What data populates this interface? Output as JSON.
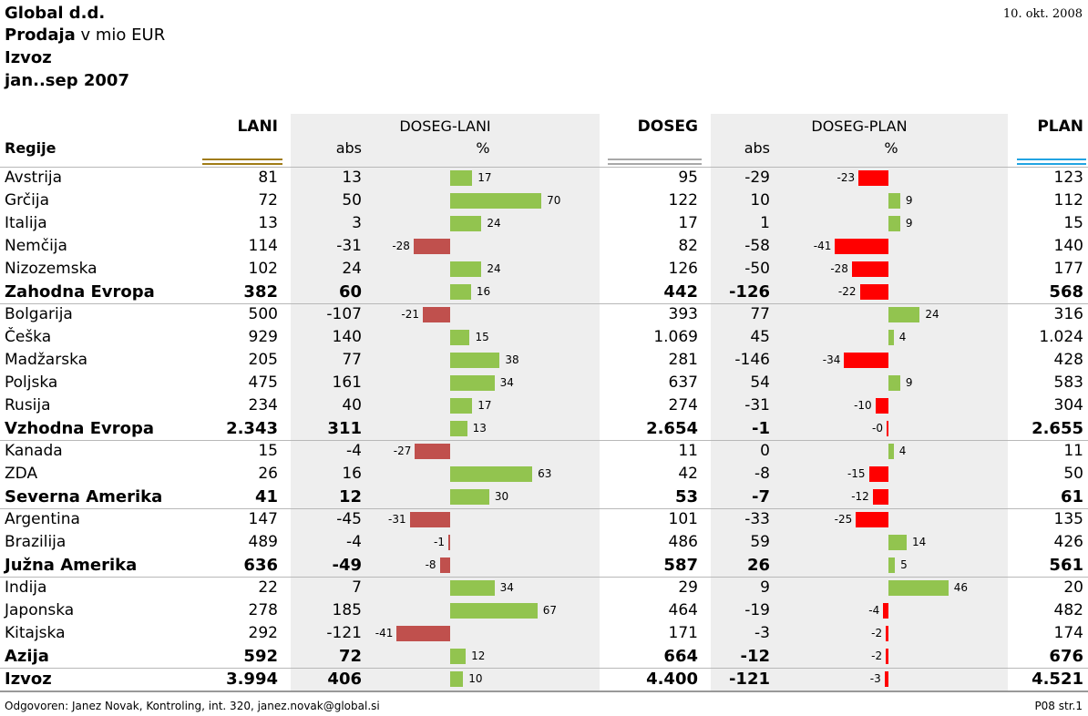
{
  "header": {
    "company": "Global d.d.",
    "measure_bold": "Prodaja",
    "measure_unit": " v mio EUR",
    "segment": "Izvoz",
    "period": "jan..sep 2007",
    "date": "10. okt. 2008"
  },
  "columns": {
    "region": "Regije",
    "lani": "LANI",
    "doseg_lani": "DOSEG-LANI",
    "doseg": "DOSEG",
    "doseg_plan": "DOSEG-PLAN",
    "plan": "PLAN",
    "abs": "abs",
    "pct": "%"
  },
  "colors": {
    "lani_line": "#a07c16",
    "doseg_line": "#a8a8a8",
    "plan_line": "#22a4e2",
    "positive_bar": "#92c44f",
    "lani_negative_bar": "#c0504d",
    "plan_negative_bar": "#ff0000",
    "shade": "#eeeeee"
  },
  "chart_data": {
    "type": "table",
    "rows": [
      {
        "region": "Avstrija",
        "lani": "81",
        "dl_abs": "13",
        "dl_pct": 17,
        "doseg": "95",
        "dp_abs": "-29",
        "dp_pct": -23,
        "plan": "123",
        "total": false
      },
      {
        "region": "Grčija",
        "lani": "72",
        "dl_abs": "50",
        "dl_pct": 70,
        "doseg": "122",
        "dp_abs": "10",
        "dp_pct": 9,
        "plan": "112",
        "total": false
      },
      {
        "region": "Italija",
        "lani": "13",
        "dl_abs": "3",
        "dl_pct": 24,
        "doseg": "17",
        "dp_abs": "1",
        "dp_pct": 9,
        "plan": "15",
        "total": false
      },
      {
        "region": "Nemčija",
        "lani": "114",
        "dl_abs": "-31",
        "dl_pct": -28,
        "doseg": "82",
        "dp_abs": "-58",
        "dp_pct": -41,
        "plan": "140",
        "total": false
      },
      {
        "region": "Nizozemska",
        "lani": "102",
        "dl_abs": "24",
        "dl_pct": 24,
        "doseg": "126",
        "dp_abs": "-50",
        "dp_pct": -28,
        "plan": "177",
        "total": false
      },
      {
        "region": "Zahodna Evropa",
        "lani": "382",
        "dl_abs": "60",
        "dl_pct": 16,
        "doseg": "442",
        "dp_abs": "-126",
        "dp_pct": -22,
        "plan": "568",
        "total": true
      },
      {
        "region": "Bolgarija",
        "lani": "500",
        "dl_abs": "-107",
        "dl_pct": -21,
        "doseg": "393",
        "dp_abs": "77",
        "dp_pct": 24,
        "plan": "316",
        "total": false
      },
      {
        "region": "Češka",
        "lani": "929",
        "dl_abs": "140",
        "dl_pct": 15,
        "doseg": "1.069",
        "dp_abs": "45",
        "dp_pct": 4,
        "plan": "1.024",
        "total": false
      },
      {
        "region": "Madžarska",
        "lani": "205",
        "dl_abs": "77",
        "dl_pct": 38,
        "doseg": "281",
        "dp_abs": "-146",
        "dp_pct": -34,
        "plan": "428",
        "total": false
      },
      {
        "region": "Poljska",
        "lani": "475",
        "dl_abs": "161",
        "dl_pct": 34,
        "doseg": "637",
        "dp_abs": "54",
        "dp_pct": 9,
        "plan": "583",
        "total": false
      },
      {
        "region": "Rusija",
        "lani": "234",
        "dl_abs": "40",
        "dl_pct": 17,
        "doseg": "274",
        "dp_abs": "-31",
        "dp_pct": -10,
        "plan": "304",
        "total": false
      },
      {
        "region": "Vzhodna Evropa",
        "lani": "2.343",
        "dl_abs": "311",
        "dl_pct": 13,
        "doseg": "2.654",
        "dp_abs": "-1",
        "dp_pct": 0,
        "dp_label": "-0",
        "plan": "2.655",
        "total": true
      },
      {
        "region": "Kanada",
        "lani": "15",
        "dl_abs": "-4",
        "dl_pct": -27,
        "doseg": "11",
        "dp_abs": "0",
        "dp_pct": 4,
        "plan": "11",
        "total": false
      },
      {
        "region": "ZDA",
        "lani": "26",
        "dl_abs": "16",
        "dl_pct": 63,
        "doseg": "42",
        "dp_abs": "-8",
        "dp_pct": -15,
        "plan": "50",
        "total": false
      },
      {
        "region": "Severna Amerika",
        "lani": "41",
        "dl_abs": "12",
        "dl_pct": 30,
        "doseg": "53",
        "dp_abs": "-7",
        "dp_pct": -12,
        "plan": "61",
        "total": true
      },
      {
        "region": "Argentina",
        "lani": "147",
        "dl_abs": "-45",
        "dl_pct": -31,
        "doseg": "101",
        "dp_abs": "-33",
        "dp_pct": -25,
        "plan": "135",
        "total": false
      },
      {
        "region": "Brazilija",
        "lani": "489",
        "dl_abs": "-4",
        "dl_pct": -1,
        "doseg": "486",
        "dp_abs": "59",
        "dp_pct": 14,
        "plan": "426",
        "total": false
      },
      {
        "region": "Južna Amerika",
        "lani": "636",
        "dl_abs": "-49",
        "dl_pct": -8,
        "doseg": "587",
        "dp_abs": "26",
        "dp_pct": 5,
        "plan": "561",
        "total": true
      },
      {
        "region": "Indija",
        "lani": "22",
        "dl_abs": "7",
        "dl_pct": 34,
        "doseg": "29",
        "dp_abs": "9",
        "dp_pct": 46,
        "plan": "20",
        "total": false
      },
      {
        "region": "Japonska",
        "lani": "278",
        "dl_abs": "185",
        "dl_pct": 67,
        "doseg": "464",
        "dp_abs": "-19",
        "dp_pct": -4,
        "plan": "482",
        "total": false
      },
      {
        "region": "Kitajska",
        "lani": "292",
        "dl_abs": "-121",
        "dl_pct": -41,
        "doseg": "171",
        "dp_abs": "-3",
        "dp_pct": -2,
        "plan": "174",
        "total": false
      },
      {
        "region": "Azija",
        "lani": "592",
        "dl_abs": "72",
        "dl_pct": 12,
        "doseg": "664",
        "dp_abs": "-12",
        "dp_pct": -2,
        "plan": "676",
        "total": true
      },
      {
        "region": "Izvoz",
        "lani": "3.994",
        "dl_abs": "406",
        "dl_pct": 10,
        "doseg": "4.400",
        "dp_abs": "-121",
        "dp_pct": -3,
        "plan": "4.521",
        "total": true
      }
    ]
  },
  "footer": {
    "responsible": "Odgovoren: Janez Novak, Kontroling, int. 320, janez.novak@global.si",
    "page": "P08  str.1"
  }
}
